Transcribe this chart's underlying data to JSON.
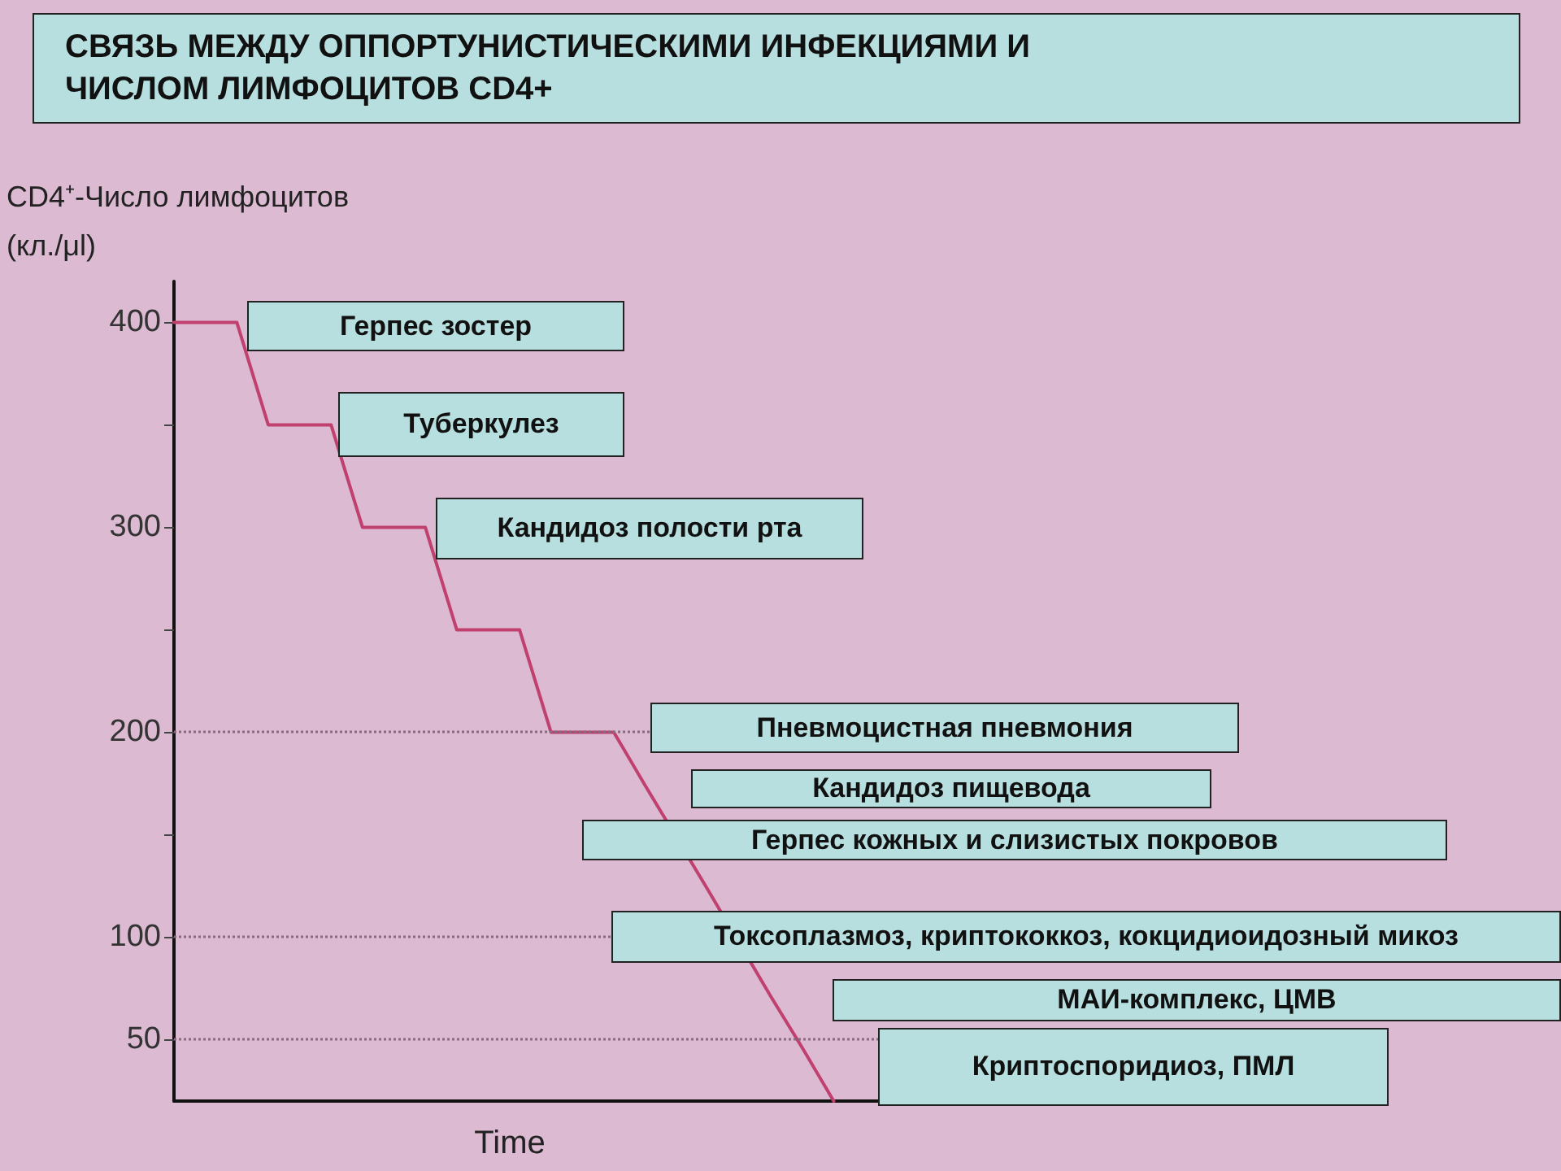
{
  "chart_data": {
    "type": "line",
    "title": "СВЯЗЬ МЕЖДУ ОППОРТУНИСТИЧЕСКИМИ ИНФЕКЦИЯМИ И ЧИСЛОМ ЛИМФОЦИТОВ CD4+",
    "xlabel": "Time",
    "ylabel": "CD4⁺-Число лимфоцитов (кл./μl)",
    "categories": [
      null,
      null,
      null,
      null,
      null,
      null,
      null,
      null,
      null,
      null,
      null,
      null,
      null,
      null,
      null,
      null,
      null,
      null,
      null,
      null,
      null,
      null,
      null,
      null,
      null,
      null
    ],
    "series": [
      {
        "color": "#c0406e",
        "values": [
          400,
          400,
          400,
          350,
          350,
          350,
          300,
          300,
          300,
          250,
          250,
          250,
          200,
          200,
          200,
          174,
          null,
          123,
          null,
          71,
          46,
          20,
          null,
          null,
          null,
          null
        ]
      }
    ],
    "ylim": [
      20,
      420
    ],
    "yticks": [
      50,
      100,
      {
        "value": 150,
        "label": null
      },
      200,
      {
        "value": 250,
        "label": null
      },
      300,
      {
        "value": 350,
        "label": null
      },
      400
    ],
    "tick_labels": "y",
    "grid": false,
    "marker": "none",
    "line_style": "solid",
    "ref_lines": [
      {
        "axis": "y",
        "value": 200,
        "line_style": "dotted",
        "color": "#8a6a80"
      },
      {
        "axis": "y",
        "value": 100,
        "line_style": "dotted",
        "color": "#8a6a80"
      },
      {
        "axis": "y",
        "value": 50,
        "line_style": "dotted",
        "color": "#8a6a80"
      }
    ],
    "annotations": [
      "Герпес зостер",
      "Туберкулез",
      "Кандидоз полости рта",
      "Пневмоцистная пневмония",
      "Кандидоз пищевода",
      "Герпес кожных и слизистых покровов",
      "Токсоплазмоз, криптококкоз, кокцидиоидозный микоз",
      "МАИ-комплекс, ЦМВ",
      "Криптоспоридиоз, ПМЛ"
    ]
  }
}
